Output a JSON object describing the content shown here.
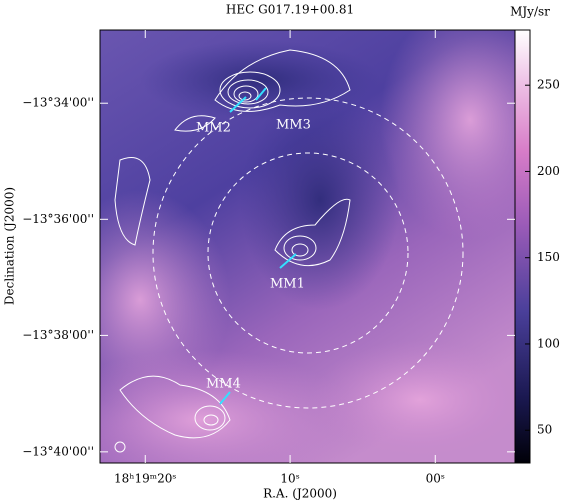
{
  "chart_data": {
    "type": "image",
    "title": "HEC G017.19+00.81",
    "x_label": "R.A. (J2000)",
    "y_label": "Declination (J2000)",
    "colorbar_label": "MJy/sr",
    "xlim": [
      274.8463,
      274.7271
    ],
    "ylim": [
      -13.6699,
      -13.5457
    ],
    "xticks": [
      {
        "value": 274.8333,
        "label": "18ʰ19ᵐ20ˢ"
      },
      {
        "value": 274.7917,
        "label": "10ˢ"
      },
      {
        "value": 274.75,
        "label": "00ˢ"
      }
    ],
    "yticks": [
      {
        "value": -13.5667,
        "label": "−13°34'00''"
      },
      {
        "value": -13.6,
        "label": "−13°36'00''"
      },
      {
        "value": -13.6333,
        "label": "−13°38'00''"
      },
      {
        "value": -13.6667,
        "label": "−13°40'00''"
      }
    ],
    "clim": [
      31,
      282
    ],
    "cticks": [
      50,
      100,
      150,
      200,
      250
    ],
    "annotations": [
      "MM1",
      "MM2",
      "MM3",
      "MM4"
    ]
  }
}
